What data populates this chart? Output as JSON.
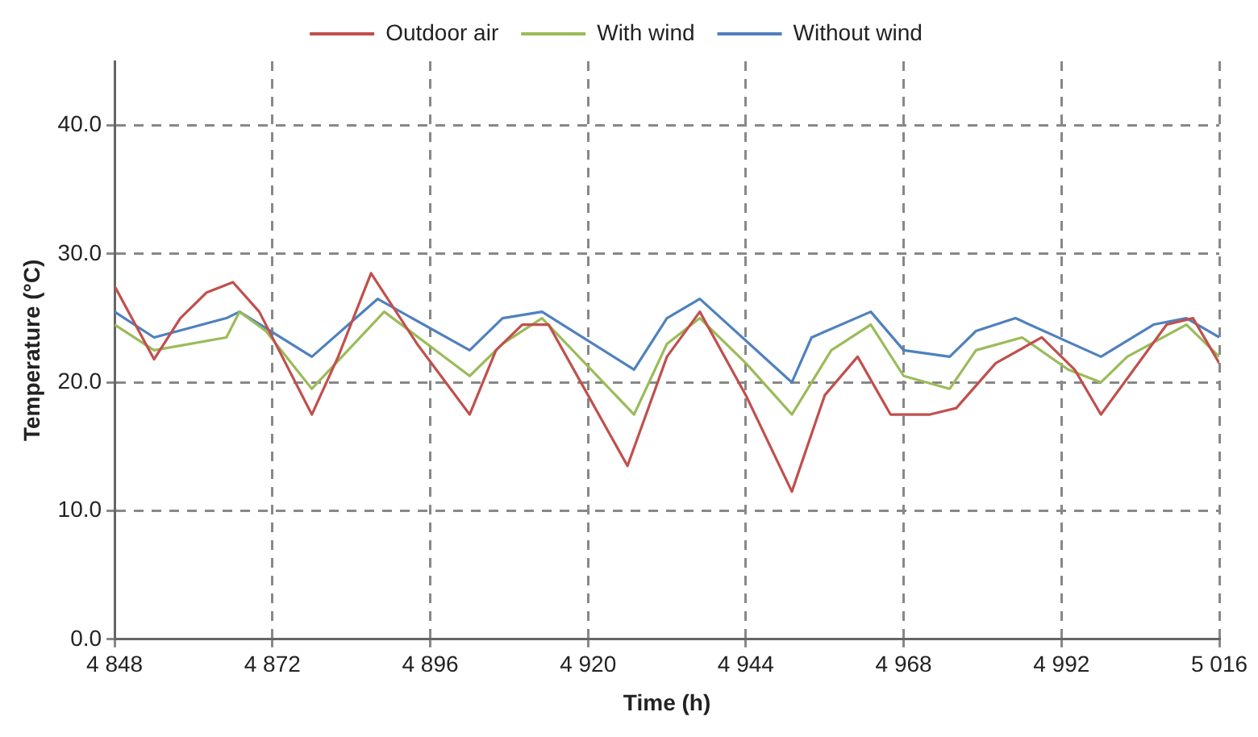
{
  "chart_data": {
    "type": "line",
    "xlabel": "Time (h)",
    "ylabel": "Temperature (°C)",
    "legend": "top",
    "grid": true,
    "line_style": "solid",
    "marker": "none",
    "xlim": [
      4848,
      5016
    ],
    "ylim": [
      0,
      45
    ],
    "xticks": [
      {
        "value": 4848,
        "label": "4 848"
      },
      {
        "value": 4872,
        "label": "4 872"
      },
      {
        "value": 4896,
        "label": "4 896"
      },
      {
        "value": 4920,
        "label": "4 920"
      },
      {
        "value": 4944,
        "label": "4 944"
      },
      {
        "value": 4968,
        "label": "4 968"
      },
      {
        "value": 4992,
        "label": "4 992"
      },
      {
        "value": 5016,
        "label": "5 016"
      }
    ],
    "yticks": [
      {
        "value": 0,
        "label": "0.0"
      },
      {
        "value": 10,
        "label": "10.0"
      },
      {
        "value": 20,
        "label": "20.0"
      },
      {
        "value": 30,
        "label": "30.0"
      },
      {
        "value": 40,
        "label": "40.0"
      }
    ],
    "series": [
      {
        "name": "Outdoor air",
        "color": "#c0504d",
        "x": [
          4848,
          4854,
          4858,
          4862,
          4866,
          4870,
          4878,
          4882,
          4887,
          4894,
          4902,
          4906,
          4910,
          4914,
          4920,
          4926,
          4932,
          4937,
          4944,
          4951,
          4956,
          4961,
          4966,
          4972,
          4976,
          4982,
          4989,
          4994,
          4998,
          5003,
          5008,
          5012,
          5016
        ],
        "values": [
          27.5,
          21.8,
          25,
          27,
          27.8,
          25.5,
          17.5,
          22,
          28.5,
          23,
          17.5,
          22.5,
          24.5,
          24.5,
          19,
          13.5,
          22,
          25.5,
          19,
          11.5,
          19,
          22,
          17.5,
          17.5,
          18,
          21.5,
          23.5,
          21,
          17.5,
          21,
          24.5,
          25,
          21.5
        ]
      },
      {
        "name": "With wind",
        "color": "#9bbb59",
        "x": [
          4848,
          4854,
          4865,
          4867,
          4871,
          4878,
          4889,
          4902,
          4907,
          4913,
          4927,
          4932,
          4937,
          4944,
          4951,
          4957,
          4963,
          4968,
          4975,
          4979,
          4986,
          4993,
          4998,
          5002,
          5011,
          5016
        ],
        "values": [
          24.5,
          22.5,
          23.5,
          25.5,
          24,
          19.5,
          25.5,
          20.5,
          23,
          25,
          17.5,
          23,
          25,
          21.5,
          17.5,
          22.5,
          24.5,
          20.5,
          19.5,
          22.5,
          23.5,
          21,
          20,
          22,
          24.5,
          22
        ]
      },
      {
        "name": "Without wind",
        "color": "#4f81bd",
        "x": [
          4848,
          4854,
          4865,
          4867,
          4878,
          4888,
          4902,
          4907,
          4913,
          4927,
          4932,
          4937,
          4951,
          4954,
          4963,
          4968,
          4975,
          4979,
          4985,
          4998,
          5006,
          5011,
          5016
        ],
        "values": [
          25.5,
          23.5,
          25,
          25.5,
          22,
          26.5,
          22.5,
          25,
          25.5,
          21,
          25,
          26.5,
          20,
          23.5,
          25.5,
          22.5,
          22,
          24,
          25,
          22,
          24.5,
          25,
          23.5
        ]
      }
    ]
  }
}
